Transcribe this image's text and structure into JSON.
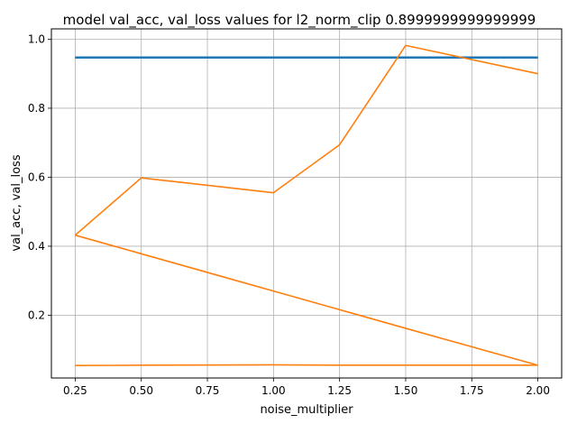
{
  "chart_data": {
    "type": "line",
    "title": "model val_acc, val_loss values for l2_norm_clip 0.8999999999999999",
    "xlabel": "noise_multiplier",
    "ylabel": "val_acc, val_loss",
    "xlim": [
      0.16,
      2.09
    ],
    "ylim": [
      0.018,
      1.03
    ],
    "xticks": [
      0.25,
      0.5,
      0.75,
      1.0,
      1.25,
      1.5,
      1.75,
      2.0
    ],
    "xtick_labels": [
      "0.25",
      "0.50",
      "0.75",
      "1.00",
      "1.25",
      "1.50",
      "1.75",
      "2.00"
    ],
    "yticks": [
      0.2,
      0.4,
      0.6,
      0.8,
      1.0
    ],
    "ytick_labels": [
      "0.2",
      "0.4",
      "0.6",
      "0.8",
      "1.0"
    ],
    "grid": true,
    "legend": false,
    "series": [
      {
        "color": "#1f77b4",
        "x": [
          0.25,
          0.5,
          1.0,
          1.25,
          1.5,
          2.0
        ],
        "y": [
          0.947,
          0.947,
          0.947,
          0.947,
          0.947,
          0.947
        ]
      },
      {
        "color": "#ff7f0e",
        "x": [
          0.25,
          0.5,
          1.0,
          1.25,
          1.5,
          2.0,
          0.25,
          0.5,
          1.0,
          1.25,
          1.5,
          2.0
        ],
        "y": [
          0.432,
          0.598,
          0.555,
          0.694,
          0.982,
          0.9,
          0.432,
          0.378,
          0.27,
          0.216,
          0.162,
          0.055
        ],
        "segments": [
          [
            0,
            5
          ],
          [
            6,
            11
          ]
        ]
      },
      {
        "color": "#ff7f0e",
        "x": [
          0.25,
          0.5,
          1.0,
          1.25,
          1.5,
          2.0
        ],
        "y": [
          0.054,
          0.055,
          0.056,
          0.055,
          0.055,
          0.055
        ]
      }
    ]
  }
}
